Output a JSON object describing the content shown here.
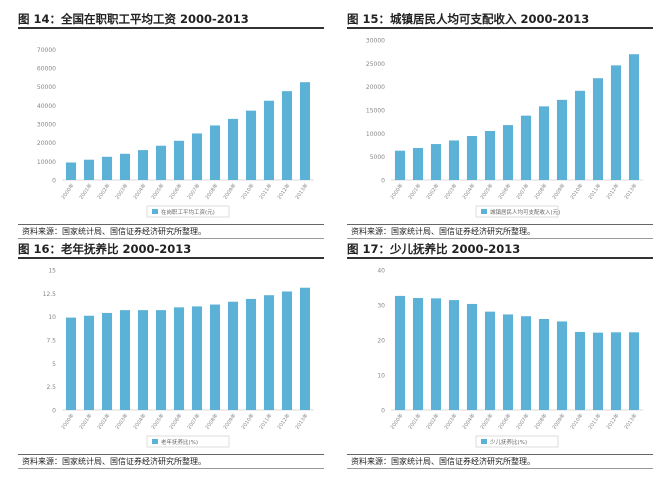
{
  "panels": [
    {
      "title": "图 14：全国在职职工平均工资 2000-2013",
      "source": "资料来源：国家统计局、国信证券经济研究所整理。",
      "chart_data": {
        "type": "bar",
        "categories": [
          "2000年",
          "2001年",
          "2002年",
          "2003年",
          "2004年",
          "2005年",
          "2006年",
          "2007年",
          "2008年",
          "2009年",
          "2010年",
          "2011年",
          "2012年",
          "2013年"
        ],
        "series": [
          {
            "name": "在岗职工平均工资(元)",
            "values": [
              9371,
              10870,
              12422,
              14040,
              16024,
              18364,
              21001,
              24932,
              29229,
              32736,
              37147,
              42452,
              47593,
              52388
            ]
          }
        ],
        "yticks": [
          0,
          10000,
          20000,
          30000,
          40000,
          50000,
          60000,
          70000
        ],
        "ylim": [
          0,
          75000
        ],
        "color": "#5bb1d6",
        "grid": false,
        "legend": "bottom"
      }
    },
    {
      "title": "图 15：城镇居民人均可支配收入 2000-2013",
      "source": "资料来源：国家统计局、国信证券经济研究所整理。",
      "chart_data": {
        "type": "bar",
        "categories": [
          "2000年",
          "2001年",
          "2002年",
          "2003年",
          "2004年",
          "2005年",
          "2006年",
          "2007年",
          "2008年",
          "2009年",
          "2010年",
          "2011年",
          "2012年",
          "2013年"
        ],
        "series": [
          {
            "name": "城镇居民人均可支配收入(元)",
            "values": [
              6280,
              6860,
              7703,
              8472,
              9422,
              10493,
              11760,
              13786,
              15781,
              17175,
              19109,
              21810,
              24565,
              26955
            ]
          }
        ],
        "yticks": [
          0,
          5000,
          10000,
          15000,
          20000,
          25000,
          30000
        ],
        "ylim": [
          0,
          30000
        ],
        "color": "#5bb1d6",
        "grid": false,
        "legend": "bottom"
      }
    },
    {
      "title": "图 16：老年抚养比 2000-2013",
      "source": "资料来源：国家统计局、国信证券经济研究所整理。",
      "chart_data": {
        "type": "bar",
        "categories": [
          "2000年",
          "2001年",
          "2002年",
          "2003年",
          "2004年",
          "2005年",
          "2006年",
          "2007年",
          "2008年",
          "2009年",
          "2010年",
          "2011年",
          "2012年",
          "2013年"
        ],
        "series": [
          {
            "name": "老年抚养比(%)",
            "values": [
              9.9,
              10.1,
              10.4,
              10.7,
              10.7,
              10.7,
              11.0,
              11.1,
              11.3,
              11.6,
              11.9,
              12.3,
              12.7,
              13.1
            ]
          }
        ],
        "yticks": [
          0,
          2.5,
          5,
          7.5,
          10,
          12.5,
          15
        ],
        "ylim": [
          0,
          15
        ],
        "color": "#5bb1d6",
        "grid": false,
        "legend": "bottom"
      }
    },
    {
      "title": "图 17：少儿抚养比 2000-2013",
      "source": "资料来源：国家统计局、国信证券经济研究所整理。",
      "chart_data": {
        "type": "bar",
        "categories": [
          "2000年",
          "2001年",
          "2002年",
          "2003年",
          "2004年",
          "2005年",
          "2006年",
          "2007年",
          "2008年",
          "2009年",
          "2010年",
          "2011年",
          "2012年",
          "2013年"
        ],
        "series": [
          {
            "name": "少儿抚养比(%)",
            "values": [
              32.6,
              32.0,
              31.9,
              31.4,
              30.3,
              28.1,
              27.3,
              26.8,
              26.0,
              25.3,
              22.3,
              22.1,
              22.2,
              22.2
            ]
          }
        ],
        "yticks": [
          0,
          10,
          20,
          30,
          40
        ],
        "ylim": [
          0,
          40
        ],
        "color": "#5bb1d6",
        "grid": false,
        "legend": "bottom"
      }
    }
  ]
}
